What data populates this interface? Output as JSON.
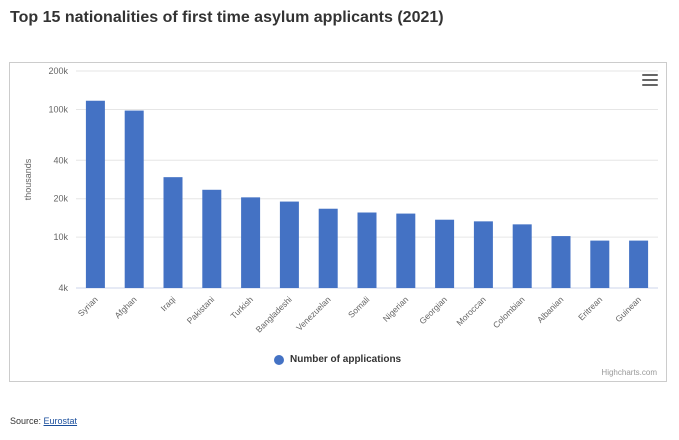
{
  "title": "Top 15 nationalities of first time asylum applicants (2021)",
  "menu_icon": "hamburger-menu-icon",
  "credits": "Highcharts.com",
  "source": {
    "label": "Source: ",
    "link_text": "Eurostat"
  },
  "colors": {
    "bar": "#4472c4",
    "grid": "#e6e6e6",
    "axis_text": "#666666"
  },
  "chart_data": {
    "type": "bar",
    "title": "Top 15 nationalities of first time asylum applicants (2021)",
    "xlabel": "",
    "ylabel": "thousands",
    "yscale": "log",
    "ylim": [
      4000,
      200000
    ],
    "yticks": [
      4000,
      10000,
      20000,
      40000,
      100000,
      200000
    ],
    "ytick_labels": [
      "4k",
      "10k",
      "20k",
      "40k",
      "100k",
      "200k"
    ],
    "grid": true,
    "legend": "bottom-center",
    "categories": [
      "Syrian",
      "Afghan",
      "Iraqi",
      "Pakistani",
      "Turkish",
      "Bangladeshi",
      "Venezuelan",
      "Somali",
      "Nigerian",
      "Georgian",
      "Moroccan",
      "Colombian",
      "Albanian",
      "Eritrean",
      "Guinean"
    ],
    "series": [
      {
        "name": "Number of applications",
        "values": [
          117000,
          98000,
          29500,
          23500,
          20500,
          19000,
          16700,
          15600,
          15300,
          13700,
          13300,
          12600,
          10200,
          9400,
          9400
        ]
      }
    ]
  }
}
